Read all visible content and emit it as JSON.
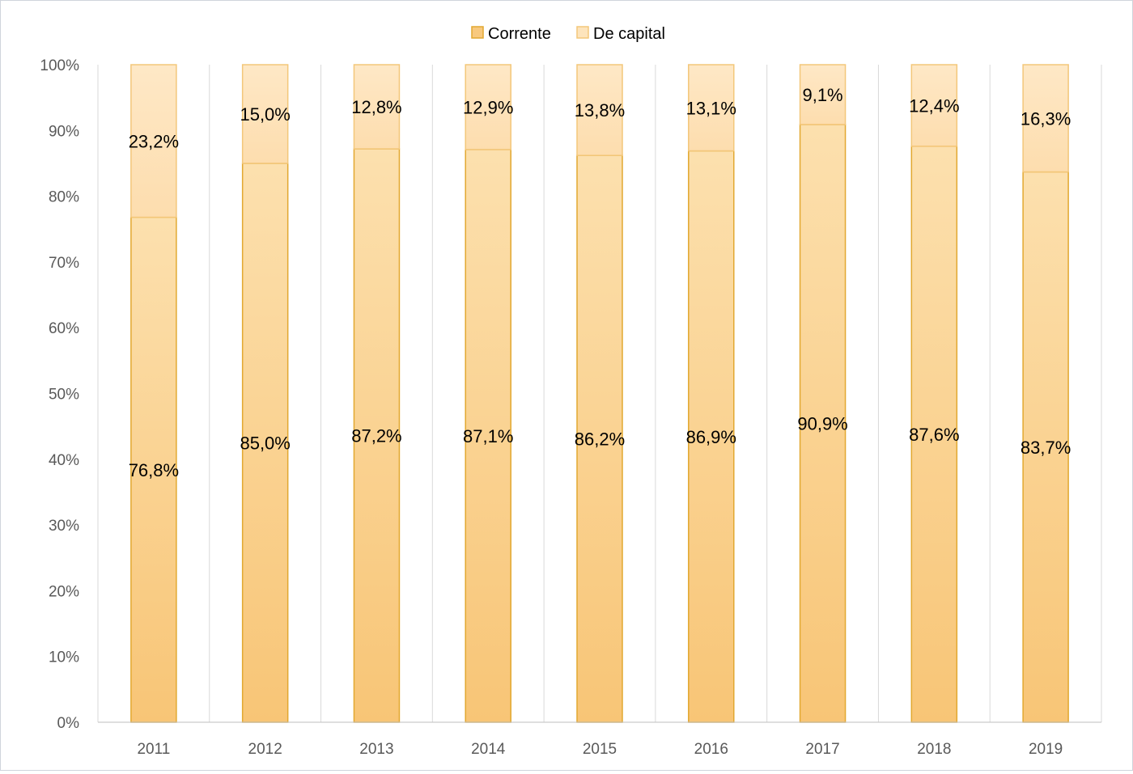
{
  "chart_data": {
    "type": "bar",
    "stacked": true,
    "percent_stacked": true,
    "categories": [
      "2011",
      "2012",
      "2013",
      "2014",
      "2015",
      "2016",
      "2017",
      "2018",
      "2019"
    ],
    "series": [
      {
        "name": "Corrente",
        "values": [
          76.8,
          85.0,
          87.2,
          87.1,
          86.2,
          86.9,
          90.9,
          87.6,
          83.7
        ],
        "labels": [
          "76,8%",
          "85,0%",
          "87,2%",
          "87,1%",
          "86,2%",
          "86,9%",
          "90,9%",
          "87,6%",
          "83,7%"
        ],
        "color": "#F8C97E",
        "border_color": "#E2A830"
      },
      {
        "name": "De capital",
        "values": [
          23.2,
          15.0,
          12.8,
          12.9,
          13.8,
          13.1,
          9.1,
          12.4,
          16.3
        ],
        "labels": [
          "23,2%",
          "15,0%",
          "12,8%",
          "12,9%",
          "13,8%",
          "13,1%",
          "9,1%",
          "12,4%",
          "16,3%"
        ],
        "color": "#FDE4BC",
        "border_color": "#F3C77A"
      }
    ],
    "ylim": [
      0,
      100
    ],
    "yticks": [
      "0%",
      "10%",
      "20%",
      "30%",
      "40%",
      "50%",
      "60%",
      "70%",
      "80%",
      "90%",
      "100%"
    ],
    "title": "",
    "xlabel": "",
    "ylabel": "",
    "grid": "vertical category separators",
    "legend_position": "top-center"
  }
}
